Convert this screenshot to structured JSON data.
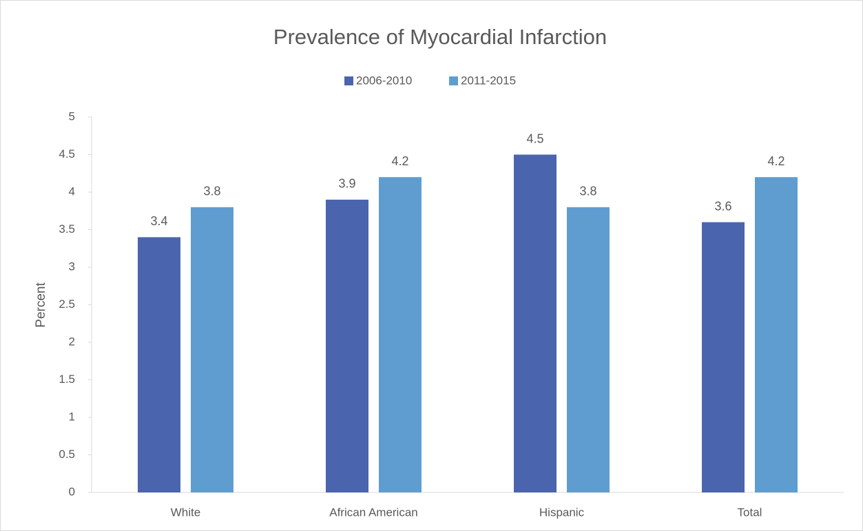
{
  "chart_data": {
    "type": "bar",
    "title": "Prevalence of Myocardial Infarction",
    "y_label": "Percent",
    "categories": [
      "White",
      "African American",
      "Hispanic",
      "Total"
    ],
    "series": [
      {
        "name": "2006-2010",
        "color": "#4a65ae",
        "values": [
          3.4,
          3.9,
          4.5,
          3.6
        ]
      },
      {
        "name": "2011-2015",
        "color": "#5f9dd1",
        "values": [
          3.8,
          4.2,
          3.8,
          4.2
        ]
      }
    ],
    "ylim": [
      0,
      5
    ],
    "yticks": [
      0,
      0.5,
      1,
      1.5,
      2,
      2.5,
      3,
      3.5,
      4,
      4.5,
      5
    ],
    "grid": false,
    "legend": "top"
  }
}
